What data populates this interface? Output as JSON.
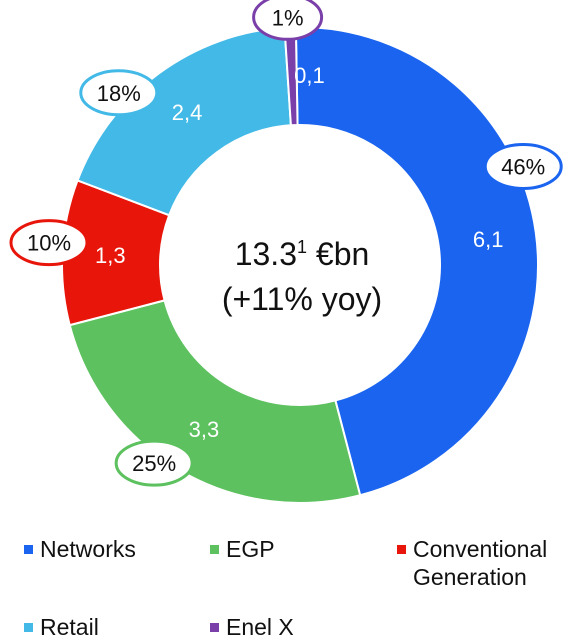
{
  "chart_data": {
    "type": "pie",
    "variant": "donut",
    "center_label": {
      "line1_main": "13.3",
      "line1_sup": "1",
      "line1_unit": " €bn",
      "line2": "(+11% yoy)"
    },
    "series": [
      {
        "name": "Networks",
        "value": 6.1,
        "value_label": "6,1",
        "percent_label": "46%",
        "color": "#1a64f0"
      },
      {
        "name": "EGP",
        "value": 3.3,
        "value_label": "3,3",
        "percent_label": "25%",
        "color": "#5cc15e"
      },
      {
        "name": "Conventional\nGeneration",
        "value": 1.3,
        "value_label": "1,3",
        "percent_label": "10%",
        "color": "#e8150b"
      },
      {
        "name": "Retail",
        "value": 2.4,
        "value_label": "2,4",
        "percent_label": "18%",
        "color": "#42b9e6"
      },
      {
        "name": "Enel X",
        "value": 0.1,
        "value_label": "0,1",
        "percent_label": "1%",
        "color": "#7a3fa8"
      }
    ],
    "legend_placement": "bottom"
  }
}
